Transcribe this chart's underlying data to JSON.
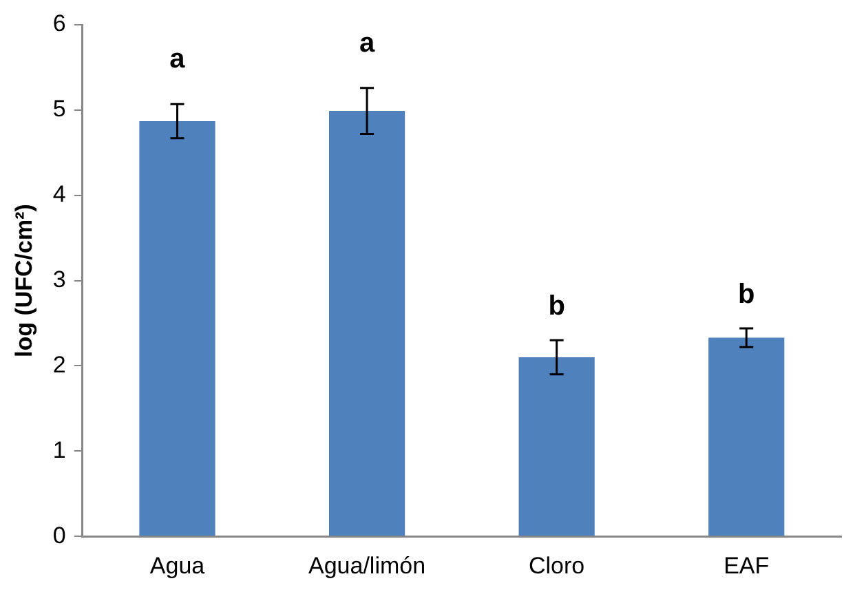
{
  "chart_data": {
    "type": "bar",
    "ylabel": "log (UFC/cm²)",
    "categories": [
      "Agua",
      "Agua/limón",
      "Cloro",
      "EAF"
    ],
    "values": [
      4.87,
      4.99,
      2.1,
      2.33
    ],
    "color": "#4f81bd",
    "errors": [
      0.2,
      0.27,
      0.2,
      0.11
    ],
    "ylim": [
      0,
      6
    ],
    "yticks": [
      0,
      1,
      2,
      3,
      4,
      5,
      6
    ],
    "grid": false,
    "legend": false,
    "annotations": [
      "a",
      "a",
      "b",
      "b"
    ]
  }
}
